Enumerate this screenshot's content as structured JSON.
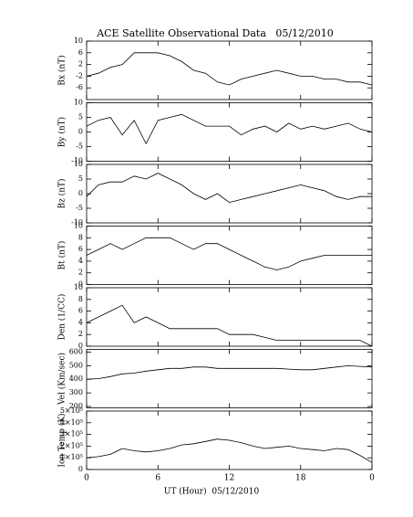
{
  "chart_data": [
    {
      "type": "line",
      "title": "ACE Satellite Observational Data   05/12/2010",
      "ylabel": "Bx (nT)",
      "x": [
        0,
        1,
        2,
        3,
        4,
        5,
        6,
        7,
        8,
        9,
        10,
        11,
        12,
        13,
        14,
        15,
        16,
        17,
        18,
        19,
        20,
        21,
        22,
        23,
        24
      ],
      "values": [
        -2,
        -1,
        1,
        2,
        6,
        6,
        6,
        5,
        3,
        0,
        -1,
        -4,
        -5,
        -3,
        -2,
        -1,
        0,
        -1,
        -2,
        -2,
        -3,
        -3,
        -4,
        -4,
        -5
      ],
      "color": "#000000",
      "xlim": [
        0,
        24
      ],
      "ylim": [
        -10,
        10
      ],
      "yticks": [
        -6,
        -2,
        2,
        6,
        10
      ]
    },
    {
      "type": "line",
      "ylabel": "By (nT)",
      "x": [
        0,
        1,
        2,
        3,
        4,
        5,
        6,
        7,
        8,
        9,
        10,
        11,
        12,
        13,
        14,
        15,
        16,
        17,
        18,
        19,
        20,
        21,
        22,
        23,
        24
      ],
      "values": [
        2,
        4,
        5,
        -1,
        4,
        -4,
        4,
        5,
        6,
        4,
        2,
        2,
        2,
        -1,
        1,
        2,
        0,
        3,
        1,
        2,
        1,
        2,
        3,
        1,
        0
      ],
      "color": "#000000",
      "xlim": [
        0,
        24
      ],
      "ylim": [
        -10,
        10
      ],
      "yticks": [
        -10,
        -5,
        0,
        5,
        10
      ]
    },
    {
      "type": "line",
      "ylabel": "Bz (nT)",
      "x": [
        0,
        1,
        2,
        3,
        4,
        5,
        6,
        7,
        8,
        9,
        10,
        11,
        12,
        13,
        14,
        15,
        16,
        17,
        18,
        19,
        20,
        21,
        22,
        23,
        24
      ],
      "values": [
        -1,
        3,
        4,
        4,
        6,
        5,
        7,
        5,
        3,
        0,
        -2,
        0,
        -3,
        -2,
        -1,
        0,
        1,
        2,
        3,
        2,
        1,
        -1,
        -2,
        -1,
        -1
      ],
      "color": "#000000",
      "xlim": [
        0,
        24
      ],
      "ylim": [
        -10,
        10
      ],
      "yticks": [
        -10,
        -5,
        0,
        5,
        10
      ]
    },
    {
      "type": "line",
      "ylabel": "Bt (nT)",
      "x": [
        0,
        1,
        2,
        3,
        4,
        5,
        6,
        7,
        8,
        9,
        10,
        11,
        12,
        13,
        14,
        15,
        16,
        17,
        18,
        19,
        20,
        21,
        22,
        23,
        24
      ],
      "values": [
        5,
        6,
        7,
        6,
        7,
        8,
        8,
        8,
        7,
        6,
        7,
        7,
        6,
        5,
        4,
        3,
        2.5,
        3,
        4,
        4.5,
        5,
        5,
        5,
        5,
        5
      ],
      "color": "#000000",
      "xlim": [
        0,
        24
      ],
      "ylim": [
        0,
        10
      ],
      "yticks": [
        0,
        2,
        4,
        6,
        8,
        10
      ]
    },
    {
      "type": "line",
      "ylabel": "Den (1/CC)",
      "x": [
        0,
        1,
        2,
        3,
        4,
        5,
        6,
        7,
        8,
        9,
        10,
        11,
        12,
        13,
        14,
        15,
        16,
        17,
        18,
        19,
        20,
        21,
        22,
        23,
        24
      ],
      "values": [
        4,
        5,
        6,
        7,
        4,
        5,
        4,
        3,
        3,
        3,
        3,
        3,
        2,
        2,
        2,
        1.5,
        1,
        1,
        1,
        1,
        1,
        1,
        1,
        1,
        0
      ],
      "color": "#000000",
      "xlim": [
        0,
        24
      ],
      "ylim": [
        0,
        10
      ],
      "yticks": [
        0,
        2,
        4,
        6,
        8,
        10
      ]
    },
    {
      "type": "line",
      "ylabel": "Vel (Km/sec)",
      "x": [
        0,
        1,
        2,
        3,
        4,
        5,
        6,
        7,
        8,
        9,
        10,
        11,
        12,
        13,
        14,
        15,
        16,
        17,
        18,
        19,
        20,
        21,
        22,
        23,
        24
      ],
      "values": [
        400,
        405,
        420,
        440,
        445,
        460,
        470,
        480,
        480,
        490,
        490,
        480,
        480,
        480,
        480,
        480,
        480,
        475,
        470,
        470,
        480,
        490,
        500,
        495,
        490
      ],
      "color": "#000000",
      "xlim": [
        0,
        24
      ],
      "ylim": [
        190,
        620
      ],
      "yticks": [
        200,
        300,
        400,
        500,
        600
      ]
    },
    {
      "type": "line",
      "ylabel": "Ion Temp (K)",
      "xlabel": "UT (Hour)  05/12/2010",
      "x": [
        0,
        1,
        2,
        3,
        4,
        5,
        6,
        7,
        8,
        9,
        10,
        11,
        12,
        13,
        14,
        15,
        16,
        17,
        18,
        19,
        20,
        21,
        22,
        23,
        24
      ],
      "values": [
        100000,
        110000,
        130000,
        180000,
        160000,
        150000,
        160000,
        180000,
        210000,
        220000,
        240000,
        260000,
        250000,
        230000,
        200000,
        180000,
        190000,
        200000,
        180000,
        170000,
        160000,
        180000,
        170000,
        120000,
        60000
      ],
      "color": "#000000",
      "xlim": [
        0,
        24
      ],
      "ylim": [
        0,
        500000
      ],
      "yticks": [
        0,
        {
          "value": 100000,
          "label": "1×10⁵"
        },
        {
          "value": 200000,
          "label": "2×10⁵"
        },
        {
          "value": 300000,
          "label": "3×10⁵"
        },
        {
          "value": 400000,
          "label": "4×10⁵"
        },
        {
          "value": 500000,
          "label": "5×10⁵"
        }
      ],
      "xticks": [
        0,
        6,
        12,
        18,
        {
          "value": 24,
          "label": "0"
        }
      ]
    }
  ]
}
